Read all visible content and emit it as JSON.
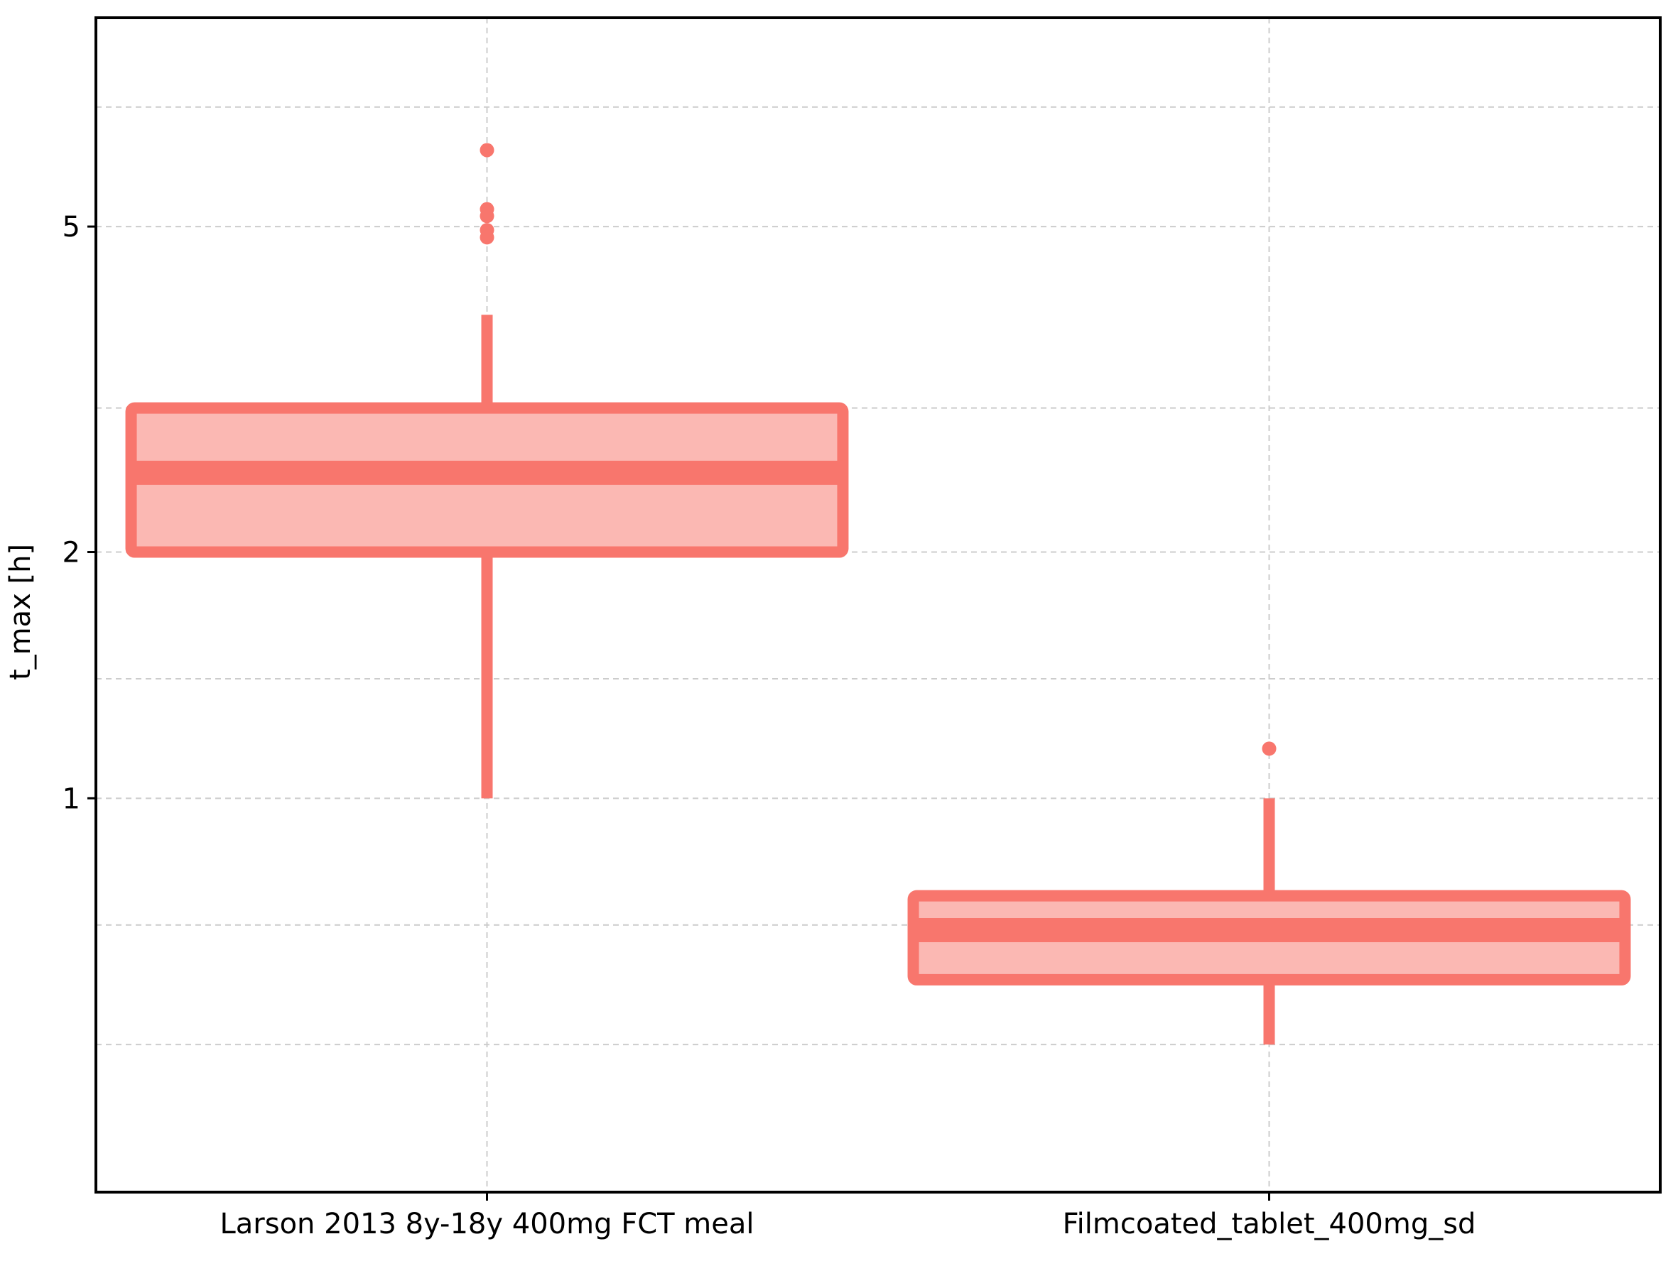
{
  "chart_data": {
    "type": "box",
    "title": "",
    "xlabel": "",
    "ylabel": "t_max [h]",
    "yscale": "log",
    "ylim": [
      0.33,
      9.0
    ],
    "yticks": [
      {
        "value": 1,
        "label": "1"
      },
      {
        "value": 2,
        "label": "2"
      },
      {
        "value": 5,
        "label": "5"
      }
    ],
    "ygrid_minor": [
      0.5,
      0.7,
      1.4,
      3,
      7
    ],
    "grid": true,
    "categories": [
      "Larson 2013 8y-18y 400mg FCT meal",
      "Filmcoated_tablet_400mg_sd"
    ],
    "boxes": [
      {
        "category": "Larson 2013 8y-18y 400mg FCT meal",
        "whisker_low": 1.0,
        "q1": 2.0,
        "median": 2.5,
        "q3": 3.0,
        "whisker_high": 3.9,
        "outliers": [
          6.2,
          5.25,
          5.15,
          4.95,
          4.85
        ]
      },
      {
        "category": "Filmcoated_tablet_400mg_sd",
        "whisker_low": 0.5,
        "q1": 0.6,
        "median": 0.69,
        "q3": 0.76,
        "whisker_high": 1.0,
        "outliers": [
          1.15
        ]
      }
    ],
    "colors": {
      "edge": "#f8766d",
      "fill": "#fbb8b3",
      "grid": "#cccccc",
      "axis": "#000000"
    }
  }
}
